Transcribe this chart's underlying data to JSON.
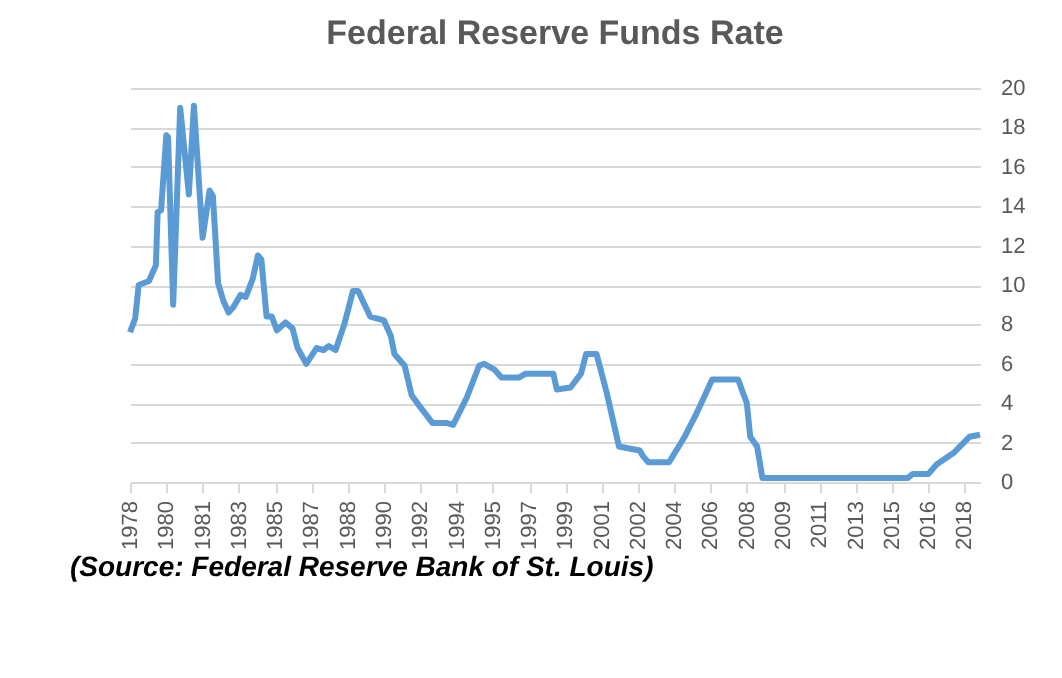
{
  "chart_data": {
    "type": "line",
    "title": "Federal Reserve Funds Rate",
    "annotations": [
      "(Source: Federal Reserve Bank of St. Louis)"
    ],
    "x": [
      "1978-04",
      "1978-07",
      "1978-09",
      "1979-03",
      "1979-07",
      "1979-08",
      "1979-10",
      "1980-01",
      "1980-02",
      "1980-05",
      "1980-09",
      "1981-02",
      "1981-05",
      "1981-10",
      "1982-02",
      "1982-04",
      "1982-07",
      "1982-10",
      "1983-01",
      "1983-04",
      "1983-08",
      "1983-11",
      "1984-03",
      "1984-06",
      "1984-08",
      "1984-11",
      "1985-02",
      "1985-05",
      "1985-10",
      "1986-02",
      "1986-05",
      "1986-10",
      "1987-01",
      "1987-04",
      "1987-08",
      "1987-11",
      "1988-03",
      "1988-08",
      "1989-01",
      "1989-04",
      "1989-11",
      "1990-07",
      "1990-11",
      "1991-01",
      "1991-07",
      "1991-11",
      "1992-04",
      "1992-11",
      "1993-07",
      "1993-11",
      "1994-07",
      "1995-02",
      "1995-05",
      "1995-11",
      "1996-03",
      "1997-01",
      "1997-05",
      "1998-09",
      "1998-11",
      "1999-07",
      "2000-01",
      "2000-04",
      "2000-10",
      "2001-04",
      "2001-11",
      "2002-11",
      "2003-01",
      "2003-04",
      "2004-04",
      "2005-01",
      "2005-08",
      "2006-05",
      "2007-08",
      "2008-01",
      "2008-03",
      "2008-07",
      "2008-10",
      "2015-10",
      "2016-01",
      "2016-10",
      "2017-03",
      "2018-01",
      "2018-10",
      "2019-04"
    ],
    "values": [
      7.6,
      8.3,
      10.0,
      10.2,
      11.0,
      13.7,
      13.8,
      17.6,
      17.5,
      9.0,
      19.0,
      14.6,
      19.1,
      12.4,
      14.8,
      14.5,
      10.1,
      9.2,
      8.6,
      8.9,
      9.5,
      9.4,
      10.3,
      11.5,
      11.3,
      8.4,
      8.4,
      7.7,
      8.1,
      7.8,
      6.8,
      6.0,
      6.4,
      6.8,
      6.7,
      6.9,
      6.7,
      8.0,
      9.7,
      9.7,
      8.4,
      8.2,
      7.4,
      6.5,
      5.9,
      4.4,
      3.8,
      3.0,
      3.0,
      2.9,
      4.3,
      5.9,
      6.0,
      5.7,
      5.3,
      5.3,
      5.5,
      5.5,
      4.7,
      4.8,
      5.5,
      6.5,
      6.5,
      4.5,
      1.8,
      1.6,
      1.3,
      1.0,
      1.0,
      2.3,
      3.5,
      5.2,
      5.2,
      4.0,
      2.3,
      1.8,
      0.2,
      0.2,
      0.4,
      0.4,
      0.9,
      1.5,
      2.3,
      2.4
    ],
    "color": "#5b9bd5",
    "ylim": [
      0,
      20
    ],
    "yticks": [
      0,
      2,
      4,
      6,
      8,
      10,
      12,
      14,
      16,
      18,
      20
    ],
    "xlim": [
      "1978-04",
      "2019-04"
    ],
    "xticks": [
      {
        "value": "1978-04",
        "label": "1978"
      },
      {
        "value": "1980-01",
        "label": "1980"
      },
      {
        "value": "1981-10",
        "label": "1981"
      },
      {
        "value": "1983-07",
        "label": "1983"
      },
      {
        "value": "1985-04",
        "label": "1985"
      },
      {
        "value": "1987-01",
        "label": "1987"
      },
      {
        "value": "1988-10",
        "label": "1988"
      },
      {
        "value": "1990-07",
        "label": "1990"
      },
      {
        "value": "1992-04",
        "label": "1992"
      },
      {
        "value": "1994-01",
        "label": "1994"
      },
      {
        "value": "1995-10",
        "label": "1995"
      },
      {
        "value": "1997-07",
        "label": "1997"
      },
      {
        "value": "1999-04",
        "label": "1999"
      },
      {
        "value": "2001-01",
        "label": "2001"
      },
      {
        "value": "2002-10",
        "label": "2002"
      },
      {
        "value": "2004-07",
        "label": "2004"
      },
      {
        "value": "2006-04",
        "label": "2006"
      },
      {
        "value": "2008-01",
        "label": "2008"
      },
      {
        "value": "2009-10",
        "label": "2009"
      },
      {
        "value": "2011-07",
        "label": "2011"
      },
      {
        "value": "2013-04",
        "label": "2013"
      },
      {
        "value": "2015-01",
        "label": "2015"
      },
      {
        "value": "2016-10",
        "label": "2016"
      },
      {
        "value": "2018-07",
        "label": "2018"
      }
    ],
    "grid": "y",
    "marker": "none",
    "line_style": "solid"
  }
}
